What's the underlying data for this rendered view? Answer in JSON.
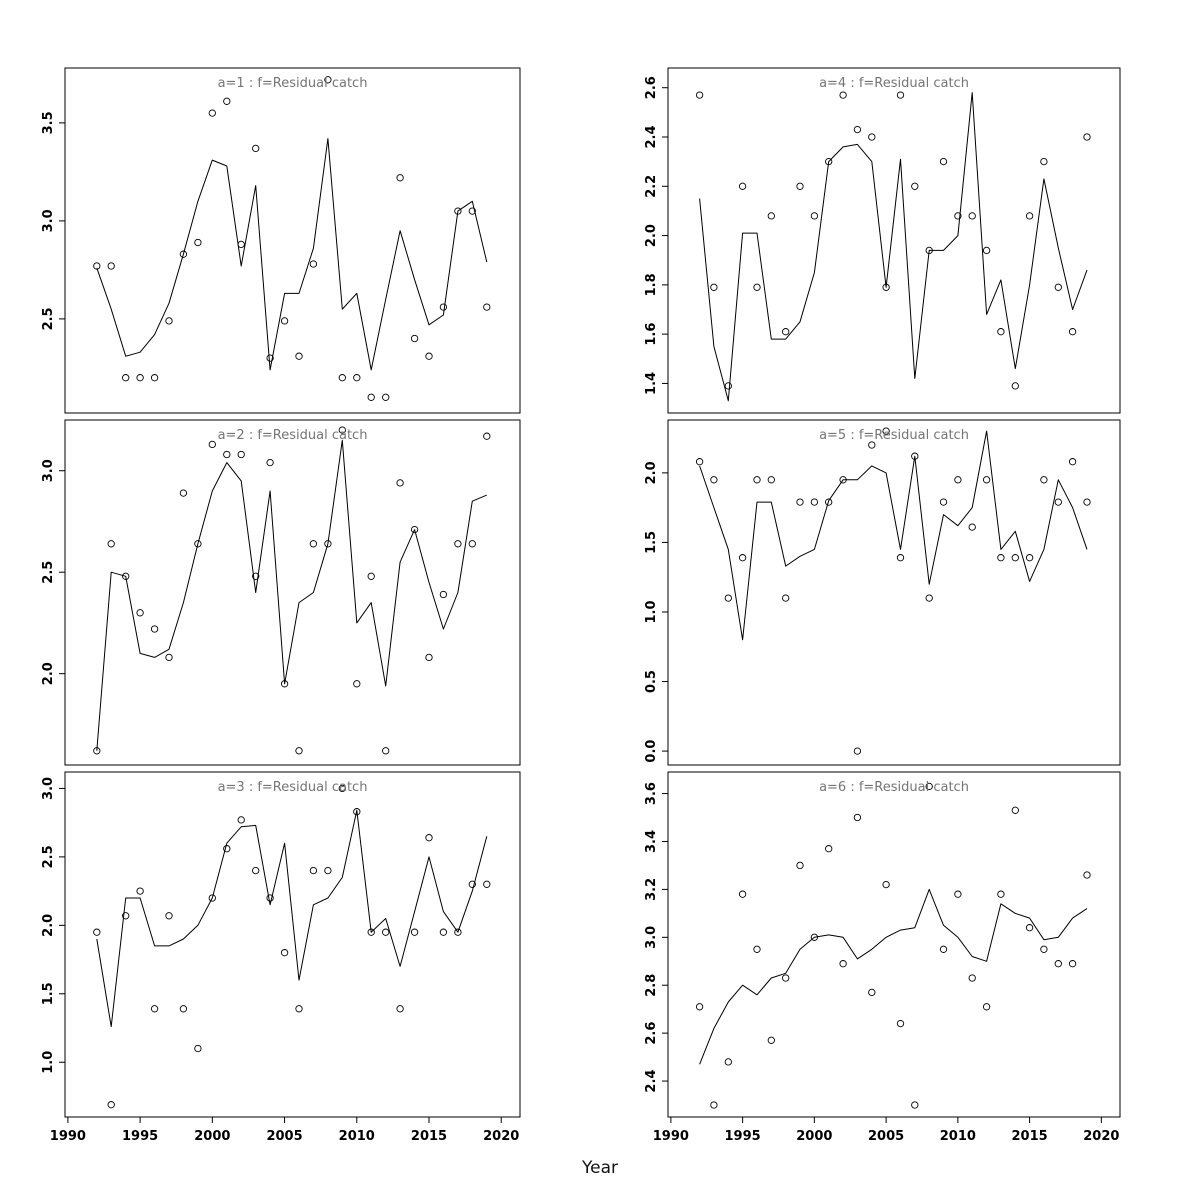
{
  "chart_data": {
    "type": "line",
    "xlabel": "Year",
    "x": [
      1992,
      1993,
      1994,
      1995,
      1996,
      1997,
      1998,
      1999,
      2000,
      2001,
      2002,
      2003,
      2004,
      2005,
      2006,
      2007,
      2008,
      2009,
      2010,
      2011,
      2012,
      2013,
      2014,
      2015,
      2016,
      2017,
      2018,
      2019
    ],
    "xticks": [
      1990,
      1995,
      2000,
      2005,
      2010,
      2015,
      2020
    ],
    "xlim": [
      1989.8,
      2021.3
    ],
    "grid": false,
    "legend": "none",
    "panels": [
      {
        "id": "a1",
        "title": "a=1  :  f=Residual catch",
        "ylim": [
          2.02,
          3.78
        ],
        "yticks": [
          2.5,
          3.0,
          3.5
        ],
        "points": [
          2.77,
          2.77,
          2.2,
          2.2,
          2.2,
          2.49,
          2.83,
          2.89,
          3.55,
          3.61,
          2.88,
          3.37,
          2.3,
          2.49,
          2.31,
          2.78,
          3.72,
          2.2,
          2.2,
          2.1,
          2.1,
          3.22,
          2.4,
          2.31,
          2.56,
          3.05,
          3.05,
          2.56
        ],
        "fit": [
          2.76,
          2.55,
          2.31,
          2.33,
          2.42,
          2.58,
          2.83,
          3.1,
          3.31,
          3.28,
          2.77,
          3.18,
          2.24,
          2.63,
          2.63,
          2.86,
          3.42,
          2.55,
          2.63,
          2.24,
          2.6,
          2.95,
          2.7,
          2.47,
          2.52,
          3.05,
          3.1,
          2.79
        ]
      },
      {
        "id": "a2",
        "title": "a=2  :  f=Residual catch",
        "ylim": [
          1.55,
          3.25
        ],
        "yticks": [
          2.0,
          2.5,
          3.0
        ],
        "points": [
          1.62,
          2.64,
          2.48,
          2.3,
          2.22,
          2.08,
          2.89,
          2.64,
          3.13,
          3.08,
          3.08,
          2.48,
          3.04,
          1.95,
          1.62,
          2.64,
          2.64,
          3.2,
          1.95,
          2.48,
          1.62,
          2.94,
          2.71,
          2.08,
          2.39,
          2.64,
          2.64,
          3.17
        ],
        "fit": [
          1.62,
          2.5,
          2.48,
          2.1,
          2.08,
          2.12,
          2.35,
          2.64,
          2.9,
          3.04,
          2.95,
          2.4,
          2.9,
          1.95,
          2.35,
          2.4,
          2.64,
          3.15,
          2.25,
          2.35,
          1.94,
          2.55,
          2.71,
          2.45,
          2.22,
          2.4,
          2.85,
          2.88
        ]
      },
      {
        "id": "a3",
        "title": "a=3  :  f=Residual catch",
        "ylim": [
          0.6,
          3.12
        ],
        "yticks": [
          1.0,
          1.5,
          2.0,
          2.5,
          3.0
        ],
        "points": [
          1.95,
          0.69,
          2.07,
          2.25,
          1.39,
          2.07,
          1.39,
          1.1,
          2.2,
          2.56,
          2.77,
          2.4,
          2.2,
          1.8,
          1.39,
          2.4,
          2.4,
          3.0,
          2.83,
          1.95,
          1.95,
          1.39,
          1.95,
          2.64,
          1.95,
          1.95,
          2.3,
          2.3
        ],
        "fit": [
          1.9,
          1.26,
          2.2,
          2.2,
          1.85,
          1.85,
          1.9,
          2.0,
          2.2,
          2.6,
          2.72,
          2.73,
          2.15,
          2.6,
          1.6,
          2.15,
          2.2,
          2.35,
          2.84,
          1.95,
          2.05,
          1.7,
          2.1,
          2.5,
          2.1,
          1.95,
          2.25,
          2.65
        ]
      },
      {
        "id": "a4",
        "title": "a=4  :  f=Residual catch",
        "ylim": [
          1.28,
          2.68
        ],
        "yticks": [
          1.4,
          1.6,
          1.8,
          2.0,
          2.2,
          2.4,
          2.6
        ],
        "points": [
          2.57,
          1.79,
          1.39,
          2.2,
          1.79,
          2.08,
          1.61,
          2.2,
          2.08,
          2.3,
          2.57,
          2.43,
          2.4,
          1.79,
          2.57,
          2.2,
          1.94,
          2.3,
          2.08,
          2.08,
          1.94,
          1.61,
          1.39,
          2.08,
          2.3,
          1.79,
          1.61,
          2.4
        ],
        "fit": [
          2.15,
          1.55,
          1.33,
          2.01,
          2.01,
          1.58,
          1.58,
          1.65,
          1.85,
          2.3,
          2.36,
          2.37,
          2.3,
          1.79,
          2.31,
          1.42,
          1.94,
          1.94,
          2.0,
          2.58,
          1.68,
          1.82,
          1.46,
          1.8,
          2.23,
          1.95,
          1.7,
          1.86
        ]
      },
      {
        "id": "a5",
        "title": "a=5  :  f=Residual catch",
        "ylim": [
          -0.1,
          2.38
        ],
        "yticks": [
          0.0,
          0.5,
          1.0,
          1.5,
          2.0
        ],
        "points": [
          2.08,
          1.95,
          1.1,
          1.39,
          1.95,
          1.95,
          1.1,
          1.79,
          1.79,
          1.79,
          1.95,
          0.0,
          2.2,
          2.3,
          1.39,
          2.12,
          1.1,
          1.79,
          1.95,
          1.61,
          1.95,
          1.39,
          1.39,
          1.39,
          1.95,
          1.79,
          2.08,
          1.79
        ],
        "fit": [
          2.05,
          1.75,
          1.45,
          0.8,
          1.79,
          1.79,
          1.33,
          1.4,
          1.45,
          1.8,
          1.95,
          1.95,
          2.05,
          2.0,
          1.45,
          2.12,
          1.2,
          1.7,
          1.62,
          1.75,
          2.3,
          1.45,
          1.58,
          1.22,
          1.45,
          1.95,
          1.75,
          1.45
        ]
      },
      {
        "id": "a6",
        "title": "a=6  :  f=Residual catch",
        "ylim": [
          2.25,
          3.69
        ],
        "yticks": [
          2.4,
          2.6,
          2.8,
          3.0,
          3.2,
          3.4,
          3.6
        ],
        "points": [
          2.71,
          2.3,
          2.48,
          3.18,
          2.95,
          2.57,
          2.83,
          3.3,
          3.0,
          3.37,
          2.89,
          3.5,
          2.77,
          3.22,
          2.64,
          2.3,
          3.63,
          2.95,
          3.18,
          2.83,
          2.71,
          3.18,
          3.53,
          3.04,
          2.95,
          2.89,
          2.89,
          3.26
        ],
        "fit": [
          2.47,
          2.62,
          2.73,
          2.8,
          2.76,
          2.83,
          2.85,
          2.95,
          3.0,
          3.01,
          3.0,
          2.91,
          2.95,
          3.0,
          3.03,
          3.04,
          3.2,
          3.05,
          3.0,
          2.92,
          2.9,
          3.14,
          3.1,
          3.08,
          2.99,
          3.0,
          3.08,
          3.12
        ]
      }
    ]
  }
}
